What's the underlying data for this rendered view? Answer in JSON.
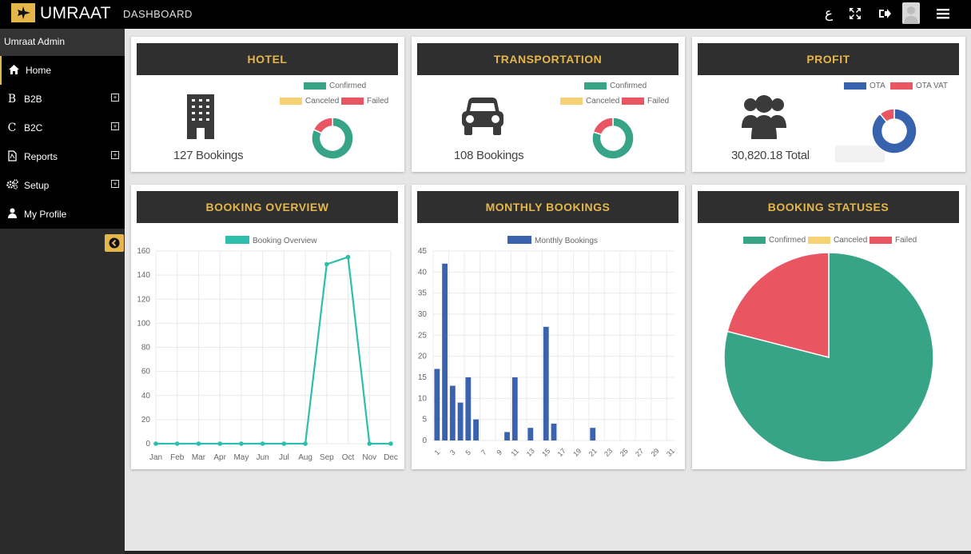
{
  "app": {
    "name": "UMRAAT",
    "page_title": "DASHBOARD",
    "user": "Umraat Admin"
  },
  "colors": {
    "accent": "#e5b64a",
    "confirmed": "#38a487",
    "canceled": "#f5d374",
    "failed": "#e95561",
    "ota": "#3762ad",
    "line": "#2dbfac",
    "bar": "#3a62ad"
  },
  "topbar": {
    "icons": [
      "language-icon",
      "fullscreen-icon",
      "logout-icon",
      "avatar",
      "menu-icon"
    ],
    "language_glyph": "ع"
  },
  "sidebar": {
    "items": [
      {
        "label": "Home",
        "icon": "home-icon"
      },
      {
        "label": "B2B",
        "icon": "B"
      },
      {
        "label": "B2C",
        "icon": "C"
      },
      {
        "label": "Reports",
        "icon": "file-icon"
      },
      {
        "label": "Setup",
        "icon": "gears-icon"
      },
      {
        "label": "My Profile",
        "icon": "user-icon"
      }
    ],
    "expand_glyph": "+"
  },
  "cards": {
    "hotel": {
      "title": "HOTEL",
      "stat": "127 Bookings",
      "legend": [
        "Confirmed",
        "Canceled",
        "Failed"
      ]
    },
    "transportation": {
      "title": "TRANSPORTATION",
      "stat": "108 Bookings",
      "legend": [
        "Confirmed",
        "Canceled",
        "Failed"
      ]
    },
    "profit": {
      "title": "PROFIT",
      "stat": "30,820.18 Total",
      "legend": [
        "OTA",
        "OTA VAT"
      ]
    }
  },
  "panels": {
    "overview": {
      "title": "BOOKING OVERVIEW"
    },
    "monthly": {
      "title": "MONTHLY BOOKINGS"
    },
    "statuses": {
      "title": "BOOKING STATUSES"
    }
  },
  "chart_data": [
    {
      "type": "pie",
      "name": "hotel-donut",
      "labels": [
        "Confirmed",
        "Canceled",
        "Failed"
      ],
      "values": [
        82,
        0,
        18
      ]
    },
    {
      "type": "pie",
      "name": "transportation-donut",
      "labels": [
        "Confirmed",
        "Canceled",
        "Failed"
      ],
      "values": [
        80,
        0,
        20
      ]
    },
    {
      "type": "pie",
      "name": "profit-donut",
      "labels": [
        "OTA",
        "OTA VAT"
      ],
      "values": [
        89,
        11
      ]
    },
    {
      "type": "line",
      "series_name": "Booking Overview",
      "categories": [
        "Jan",
        "Feb",
        "Mar",
        "Apr",
        "May",
        "Jun",
        "Jul",
        "Aug",
        "Sep",
        "Oct",
        "Nov",
        "Dec"
      ],
      "values": [
        0,
        0,
        0,
        0,
        0,
        0,
        0,
        0,
        149,
        155,
        0,
        0
      ],
      "ylim": [
        0,
        160
      ],
      "yticks": [
        0,
        20,
        40,
        60,
        80,
        100,
        120,
        140,
        160
      ]
    },
    {
      "type": "bar",
      "series_name": "Monthly Bookings",
      "x": [
        1,
        2,
        3,
        4,
        5,
        6,
        7,
        8,
        9,
        10,
        11,
        12,
        13,
        14,
        15,
        16,
        17,
        18,
        19,
        20,
        21,
        22,
        23,
        24,
        25,
        26,
        27,
        28,
        29,
        30,
        31
      ],
      "values": [
        17,
        42,
        13,
        9,
        15,
        5,
        0,
        0,
        0,
        2,
        15,
        0,
        3,
        0,
        27,
        4,
        0,
        0,
        0,
        0,
        3,
        0,
        0,
        0,
        0,
        0,
        0,
        0,
        0,
        0,
        0
      ],
      "xtick_labels": [
        "1",
        "3",
        "5",
        "7",
        "9",
        "11",
        "13",
        "15",
        "17",
        "19",
        "21",
        "23",
        "25",
        "27",
        "29",
        "31"
      ],
      "ylim": [
        0,
        45
      ],
      "yticks": [
        0,
        5,
        10,
        15,
        20,
        25,
        30,
        35,
        40,
        45
      ]
    },
    {
      "type": "pie",
      "name": "booking-statuses",
      "labels": [
        "Confirmed",
        "Canceled",
        "Failed"
      ],
      "values": [
        79,
        0,
        21
      ]
    }
  ]
}
